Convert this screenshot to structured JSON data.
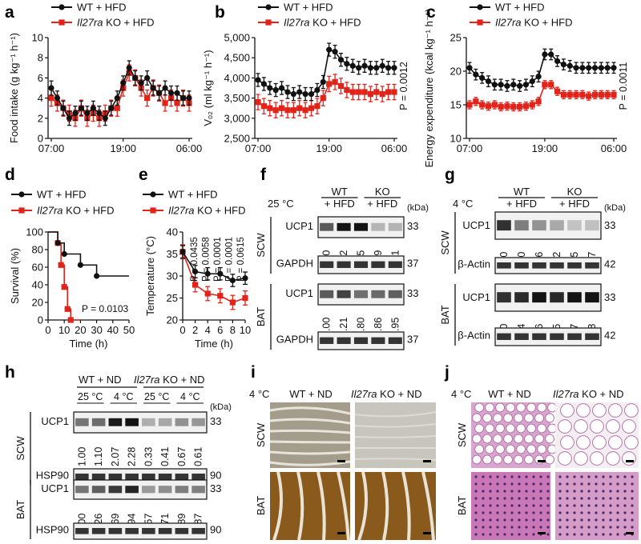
{
  "colors": {
    "wt": "#111111",
    "ko": "#e2231a",
    "brown": "#8a5a1c",
    "he": "#c56fb0",
    "ihc_bg": "#d9d6cf"
  },
  "panel_letters": [
    "a",
    "b",
    "c",
    "d",
    "e",
    "f",
    "g",
    "h",
    "i",
    "j"
  ],
  "chart_data": [
    {
      "panel": "a",
      "type": "line",
      "legend": [
        "WT + HFD",
        "Il27ra KO + HFD"
      ],
      "ylabel": "Food intake (g kg⁻¹ h⁻¹)",
      "ylim": [
        0,
        10
      ],
      "yticks": [
        "0",
        "2",
        "4",
        "6",
        "8",
        "10"
      ],
      "xticks": [
        "07:00",
        "19:00",
        "06:00"
      ],
      "series": [
        {
          "name": "WT + HFD",
          "values": [
            5,
            4,
            3,
            2,
            2.5,
            3,
            2.5,
            3,
            2.5,
            2,
            3,
            4,
            5.5,
            7,
            6,
            5.5,
            6,
            5,
            4.5,
            5,
            4.5,
            4.5,
            4,
            4
          ]
        },
        {
          "name": "Il27ra KO + HFD",
          "values": [
            4,
            3.5,
            3,
            2.5,
            2,
            3,
            2,
            2.5,
            2,
            2.5,
            3,
            3,
            5,
            6.5,
            6,
            5,
            4,
            5,
            4.5,
            3.5,
            4,
            3.5,
            4,
            3.5
          ]
        }
      ]
    },
    {
      "panel": "b",
      "type": "line",
      "legend": [
        "WT + HFD",
        "Il27ra KO + HFD"
      ],
      "ylabel": "Vₒ₂ (ml kg⁻¹ h⁻¹)",
      "ylim": [
        2500,
        5000
      ],
      "yticks": [
        "2,500",
        "3,000",
        "3,500",
        "4,000",
        "4,500",
        "5,000"
      ],
      "xticks": [
        "07:00",
        "19:00",
        "06:00"
      ],
      "pvalue": "P = 0.0012",
      "series": [
        {
          "name": "WT + HFD",
          "values": [
            3950,
            3850,
            3750,
            3700,
            3750,
            3650,
            3600,
            3650,
            3600,
            3600,
            3700,
            3900,
            4700,
            4650,
            4450,
            4350,
            4300,
            4250,
            4300,
            4250,
            4250,
            4300,
            4250,
            4250
          ]
        },
        {
          "name": "Il27ra KO + HFD",
          "values": [
            3400,
            3300,
            3250,
            3200,
            3250,
            3200,
            3200,
            3250,
            3200,
            3250,
            3300,
            3500,
            3850,
            3900,
            3800,
            3700,
            3650,
            3650,
            3650,
            3600,
            3650,
            3600,
            3650,
            3650
          ]
        }
      ]
    },
    {
      "panel": "c",
      "type": "line",
      "legend": [
        "WT + HFD",
        "Il27ra KO + HFD"
      ],
      "ylabel": "Energy expenditure (kcal kg⁻¹ h⁻¹)",
      "ylim": [
        10,
        25
      ],
      "yticks": [
        "10",
        "15",
        "20",
        "25"
      ],
      "xticks": [
        "07:00",
        "19:00",
        "06:00"
      ],
      "pvalue": "P = 0.0011",
      "series": [
        {
          "name": "WT + HFD",
          "values": [
            20.5,
            19.5,
            19,
            18.5,
            18,
            18,
            17.8,
            18,
            17.8,
            18,
            18.5,
            19.2,
            22.5,
            22.5,
            21.5,
            21,
            20.8,
            20.5,
            20.5,
            20.5,
            20.5,
            20.5,
            20.5,
            20.5
          ]
        },
        {
          "name": "Il27ra KO + HFD",
          "values": [
            15,
            15.5,
            15,
            14.8,
            15,
            14.7,
            14.8,
            14.7,
            14.7,
            14.8,
            15,
            15.5,
            18,
            18,
            17,
            16.5,
            16.5,
            16.5,
            16.5,
            16.3,
            16.5,
            16.5,
            16.5,
            16.5
          ]
        }
      ]
    },
    {
      "panel": "d",
      "type": "line",
      "legend": [
        "WT + HFD",
        "Il27ra KO + HFD"
      ],
      "ylabel": "Survival (%)",
      "xlabel": "Time (h)",
      "xlim": [
        0,
        50
      ],
      "ylim": [
        0,
        100
      ],
      "xticks": [
        "0",
        "10",
        "20",
        "30",
        "40",
        "50"
      ],
      "yticks": [
        "0",
        "20",
        "40",
        "60",
        "80",
        "100"
      ],
      "pvalue": "P = 0.0103",
      "series": [
        {
          "name": "WT + HFD",
          "x": [
            0,
            6,
            6,
            10,
            10,
            20,
            20,
            30,
            30,
            50
          ],
          "y": [
            100,
            100,
            87.5,
            87.5,
            75,
            75,
            62.5,
            62.5,
            50,
            50
          ]
        },
        {
          "name": "Il27ra KO + HFD",
          "x": [
            0,
            6,
            6,
            8,
            8,
            10,
            10,
            12,
            12,
            14,
            14,
            20
          ],
          "y": [
            100,
            100,
            87.5,
            87.5,
            62.5,
            62.5,
            37.5,
            37.5,
            12.5,
            12.5,
            0,
            0
          ]
        }
      ]
    },
    {
      "panel": "e",
      "type": "line",
      "legend": [
        "WT + HFD",
        "Il27ra KO + HFD"
      ],
      "ylabel": "Temperature (°C)",
      "xlabel": "Time (h)",
      "xlim": [
        0,
        10
      ],
      "ylim": [
        20,
        40
      ],
      "xticks": [
        "0",
        "2",
        "4",
        "6",
        "8",
        "10"
      ],
      "yticks": [
        "20",
        "25",
        "30",
        "35",
        "40"
      ],
      "pvalues": [
        "P = 0.0435",
        "P = 0.0058",
        "P = 0.0001",
        "P = 0.0001",
        "P = 0.0615"
      ],
      "series": [
        {
          "name": "WT + HFD",
          "x": [
            0,
            2,
            4,
            6,
            8,
            10
          ],
          "y": [
            35.5,
            31,
            30.5,
            30.5,
            29,
            29.5
          ]
        },
        {
          "name": "Il27ra KO + HFD",
          "x": [
            0,
            2,
            4,
            6,
            8,
            10
          ],
          "y": [
            35.5,
            28,
            26,
            25.5,
            24,
            25
          ]
        }
      ]
    },
    {
      "panel": "f",
      "type": "table",
      "condition": "25 °C",
      "groups": [
        "WT + HFD",
        "KO + HFD"
      ],
      "unit": "(kDa)",
      "tissues": [
        "SCW",
        "BAT"
      ],
      "blots": [
        {
          "label": "UCP1",
          "kda": "33",
          "values": [
            "1.00",
            "1.72",
            "1.85",
            "0.19",
            "0.21"
          ]
        },
        {
          "label": "GAPDH",
          "kda": "37"
        },
        {
          "label": "UCP1",
          "kda": "33",
          "values": [
            "1.00",
            "1.21",
            "0.80",
            "0.86",
            "0.95"
          ]
        },
        {
          "label": "GAPDH",
          "kda": "37"
        }
      ]
    },
    {
      "panel": "g",
      "type": "table",
      "condition": "4 °C",
      "groups": [
        "WT + HFD",
        "KO + HFD"
      ],
      "unit": "(kDa)",
      "tissues": [
        "SCW",
        "BAT"
      ],
      "blots": [
        {
          "label": "UCP1",
          "kda": "33",
          "values": [
            "1.00",
            "0.50",
            "0.36",
            "0.22",
            "0.05",
            "0.07"
          ]
        },
        {
          "label": "β-Actin",
          "kda": "42"
        },
        {
          "label": "UCP1",
          "kda": "33",
          "values": [
            "1.00",
            "1.04",
            "1.26",
            "1.05",
            "1.37",
            "1.28"
          ]
        },
        {
          "label": "β-Actin",
          "kda": "42"
        }
      ]
    },
    {
      "panel": "h",
      "type": "table",
      "groups": [
        "WT + ND",
        "Il27ra KO + ND"
      ],
      "temps": [
        "25 °C",
        "4 °C",
        "25 °C",
        "4 °C"
      ],
      "unit": "(kDa)",
      "tissues": [
        "SCW",
        "BAT"
      ],
      "blots": [
        {
          "label": "UCP1",
          "kda": "33",
          "values": [
            "1.00",
            "1.10",
            "2.07",
            "2.28",
            "0.33",
            "0.41",
            "0.67",
            "0.61"
          ]
        },
        {
          "label": "HSP90",
          "kda": "90"
        },
        {
          "label": "UCP1",
          "kda": "33",
          "values": [
            "1.00",
            "1.26",
            "1.69",
            "1.94",
            "0.57",
            "0.71",
            "0.89",
            "0.87"
          ]
        },
        {
          "label": "HSP90",
          "kda": "90"
        }
      ]
    }
  ],
  "panel_i": {
    "condition": "4 °C",
    "groups": [
      "WT + ND",
      "Il27ra KO + ND"
    ],
    "tissues": [
      "SCW",
      "BAT"
    ]
  },
  "panel_j": {
    "condition": "4 °C",
    "groups": [
      "WT + ND",
      "Il27ra KO + ND"
    ],
    "tissues": [
      "SCW",
      "BAT"
    ]
  }
}
